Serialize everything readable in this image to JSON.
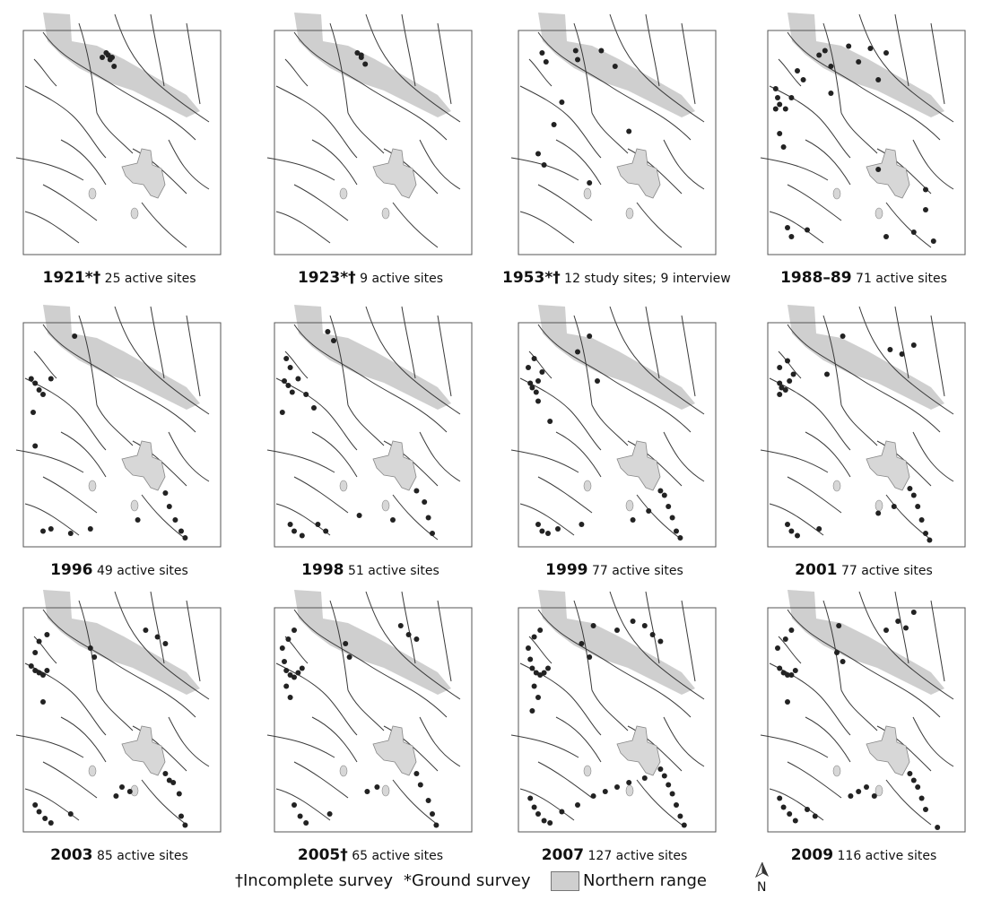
{
  "panels": [
    {
      "year": "1921*†",
      "count": "25 active sites",
      "dots": [
        [
          0.4,
          0.12
        ],
        [
          0.42,
          0.1
        ],
        [
          0.44,
          0.13
        ],
        [
          0.46,
          0.16
        ],
        [
          0.43,
          0.11
        ],
        [
          0.45,
          0.12
        ]
      ]
    },
    {
      "year": "1923*†",
      "count": "9 active sites",
      "dots": [
        [
          0.42,
          0.1
        ],
        [
          0.44,
          0.12
        ],
        [
          0.46,
          0.15
        ],
        [
          0.44,
          0.11
        ]
      ]
    },
    {
      "year": "1953*†",
      "count": "12 study sites; 9 interview",
      "dots": [
        [
          0.12,
          0.1
        ],
        [
          0.14,
          0.14
        ],
        [
          0.29,
          0.09
        ],
        [
          0.3,
          0.13
        ],
        [
          0.42,
          0.09
        ],
        [
          0.49,
          0.16
        ],
        [
          0.22,
          0.32
        ],
        [
          0.56,
          0.45
        ],
        [
          0.18,
          0.42
        ],
        [
          0.1,
          0.55
        ],
        [
          0.13,
          0.6
        ],
        [
          0.36,
          0.68
        ]
      ]
    },
    {
      "year": "1988–89",
      "count": "71 active sites",
      "dots": [
        [
          0.04,
          0.26
        ],
        [
          0.05,
          0.3
        ],
        [
          0.06,
          0.33
        ],
        [
          0.09,
          0.35
        ],
        [
          0.12,
          0.3
        ],
        [
          0.04,
          0.35
        ],
        [
          0.15,
          0.18
        ],
        [
          0.18,
          0.22
        ],
        [
          0.26,
          0.11
        ],
        [
          0.29,
          0.09
        ],
        [
          0.32,
          0.16
        ],
        [
          0.41,
          0.07
        ],
        [
          0.52,
          0.08
        ],
        [
          0.6,
          0.1
        ],
        [
          0.46,
          0.14
        ],
        [
          0.56,
          0.22
        ],
        [
          0.06,
          0.46
        ],
        [
          0.08,
          0.52
        ],
        [
          0.1,
          0.88
        ],
        [
          0.12,
          0.92
        ],
        [
          0.2,
          0.89
        ],
        [
          0.6,
          0.92
        ],
        [
          0.74,
          0.9
        ],
        [
          0.84,
          0.94
        ],
        [
          0.8,
          0.8
        ],
        [
          0.8,
          0.71
        ],
        [
          0.56,
          0.62
        ],
        [
          0.32,
          0.28
        ]
      ]
    },
    {
      "year": "1996",
      "count": "49 active sites",
      "dots": [
        [
          0.04,
          0.25
        ],
        [
          0.06,
          0.27
        ],
        [
          0.08,
          0.3
        ],
        [
          0.1,
          0.32
        ],
        [
          0.14,
          0.25
        ],
        [
          0.05,
          0.4
        ],
        [
          0.06,
          0.55
        ],
        [
          0.1,
          0.93
        ],
        [
          0.14,
          0.92
        ],
        [
          0.24,
          0.94
        ],
        [
          0.34,
          0.92
        ],
        [
          0.58,
          0.88
        ],
        [
          0.72,
          0.76
        ],
        [
          0.74,
          0.82
        ],
        [
          0.77,
          0.88
        ],
        [
          0.8,
          0.93
        ],
        [
          0.82,
          0.96
        ],
        [
          0.26,
          0.06
        ]
      ]
    },
    {
      "year": "1998",
      "count": "51 active sites",
      "dots": [
        [
          0.05,
          0.26
        ],
        [
          0.07,
          0.28
        ],
        [
          0.09,
          0.31
        ],
        [
          0.12,
          0.25
        ],
        [
          0.08,
          0.2
        ],
        [
          0.06,
          0.16
        ],
        [
          0.04,
          0.4
        ],
        [
          0.08,
          0.9
        ],
        [
          0.1,
          0.93
        ],
        [
          0.14,
          0.95
        ],
        [
          0.22,
          0.9
        ],
        [
          0.26,
          0.93
        ],
        [
          0.43,
          0.86
        ],
        [
          0.6,
          0.88
        ],
        [
          0.72,
          0.75
        ],
        [
          0.76,
          0.8
        ],
        [
          0.78,
          0.87
        ],
        [
          0.8,
          0.94
        ],
        [
          0.27,
          0.04
        ],
        [
          0.3,
          0.08
        ],
        [
          0.16,
          0.32
        ],
        [
          0.2,
          0.38
        ]
      ]
    },
    {
      "year": "1999",
      "count": "77 active sites",
      "dots": [
        [
          0.06,
          0.27
        ],
        [
          0.07,
          0.29
        ],
        [
          0.09,
          0.31
        ],
        [
          0.1,
          0.26
        ],
        [
          0.12,
          0.22
        ],
        [
          0.05,
          0.2
        ],
        [
          0.08,
          0.16
        ],
        [
          0.1,
          0.35
        ],
        [
          0.1,
          0.9
        ],
        [
          0.12,
          0.93
        ],
        [
          0.15,
          0.94
        ],
        [
          0.2,
          0.92
        ],
        [
          0.32,
          0.9
        ],
        [
          0.58,
          0.88
        ],
        [
          0.66,
          0.84
        ],
        [
          0.72,
          0.75
        ],
        [
          0.74,
          0.77
        ],
        [
          0.76,
          0.82
        ],
        [
          0.78,
          0.87
        ],
        [
          0.8,
          0.93
        ],
        [
          0.82,
          0.96
        ],
        [
          0.3,
          0.13
        ],
        [
          0.4,
          0.26
        ],
        [
          0.36,
          0.06
        ],
        [
          0.16,
          0.44
        ]
      ]
    },
    {
      "year": "2001",
      "count": "77 active sites",
      "dots": [
        [
          0.06,
          0.27
        ],
        [
          0.07,
          0.29
        ],
        [
          0.09,
          0.3
        ],
        [
          0.11,
          0.26
        ],
        [
          0.13,
          0.23
        ],
        [
          0.06,
          0.2
        ],
        [
          0.1,
          0.17
        ],
        [
          0.06,
          0.32
        ],
        [
          0.1,
          0.9
        ],
        [
          0.12,
          0.93
        ],
        [
          0.15,
          0.95
        ],
        [
          0.26,
          0.92
        ],
        [
          0.56,
          0.85
        ],
        [
          0.64,
          0.82
        ],
        [
          0.72,
          0.74
        ],
        [
          0.74,
          0.77
        ],
        [
          0.76,
          0.82
        ],
        [
          0.78,
          0.88
        ],
        [
          0.8,
          0.94
        ],
        [
          0.82,
          0.97
        ],
        [
          0.38,
          0.06
        ],
        [
          0.74,
          0.1
        ],
        [
          0.68,
          0.14
        ],
        [
          0.62,
          0.12
        ],
        [
          0.3,
          0.23
        ]
      ]
    },
    {
      "year": "2003",
      "count": "85 active sites",
      "dots": [
        [
          0.04,
          0.26
        ],
        [
          0.06,
          0.28
        ],
        [
          0.08,
          0.29
        ],
        [
          0.1,
          0.3
        ],
        [
          0.12,
          0.28
        ],
        [
          0.06,
          0.2
        ],
        [
          0.08,
          0.15
        ],
        [
          0.12,
          0.12
        ],
        [
          0.1,
          0.42
        ],
        [
          0.06,
          0.88
        ],
        [
          0.08,
          0.91
        ],
        [
          0.11,
          0.94
        ],
        [
          0.14,
          0.96
        ],
        [
          0.24,
          0.92
        ],
        [
          0.47,
          0.84
        ],
        [
          0.5,
          0.8
        ],
        [
          0.54,
          0.82
        ],
        [
          0.72,
          0.74
        ],
        [
          0.74,
          0.77
        ],
        [
          0.76,
          0.78
        ],
        [
          0.79,
          0.83
        ],
        [
          0.8,
          0.93
        ],
        [
          0.82,
          0.97
        ],
        [
          0.34,
          0.18
        ],
        [
          0.36,
          0.22
        ],
        [
          0.62,
          0.1
        ],
        [
          0.68,
          0.13
        ],
        [
          0.72,
          0.16
        ]
      ]
    },
    {
      "year": "2005†",
      "count": "65 active sites",
      "dots": [
        [
          0.04,
          0.18
        ],
        [
          0.05,
          0.24
        ],
        [
          0.06,
          0.28
        ],
        [
          0.08,
          0.3
        ],
        [
          0.1,
          0.31
        ],
        [
          0.12,
          0.29
        ],
        [
          0.14,
          0.27
        ],
        [
          0.07,
          0.14
        ],
        [
          0.1,
          0.1
        ],
        [
          0.06,
          0.35
        ],
        [
          0.08,
          0.4
        ],
        [
          0.1,
          0.88
        ],
        [
          0.13,
          0.93
        ],
        [
          0.16,
          0.96
        ],
        [
          0.28,
          0.92
        ],
        [
          0.47,
          0.82
        ],
        [
          0.52,
          0.8
        ],
        [
          0.72,
          0.74
        ],
        [
          0.74,
          0.79
        ],
        [
          0.78,
          0.86
        ],
        [
          0.8,
          0.92
        ],
        [
          0.82,
          0.97
        ],
        [
          0.36,
          0.16
        ],
        [
          0.38,
          0.22
        ],
        [
          0.64,
          0.08
        ],
        [
          0.68,
          0.12
        ],
        [
          0.72,
          0.14
        ]
      ]
    },
    {
      "year": "2007",
      "count": "127 active sites",
      "dots": [
        [
          0.05,
          0.18
        ],
        [
          0.06,
          0.23
        ],
        [
          0.07,
          0.27
        ],
        [
          0.09,
          0.29
        ],
        [
          0.11,
          0.3
        ],
        [
          0.13,
          0.29
        ],
        [
          0.15,
          0.27
        ],
        [
          0.08,
          0.13
        ],
        [
          0.11,
          0.1
        ],
        [
          0.08,
          0.35
        ],
        [
          0.1,
          0.4
        ],
        [
          0.07,
          0.46
        ],
        [
          0.06,
          0.85
        ],
        [
          0.08,
          0.89
        ],
        [
          0.1,
          0.92
        ],
        [
          0.13,
          0.95
        ],
        [
          0.16,
          0.96
        ],
        [
          0.22,
          0.91
        ],
        [
          0.3,
          0.88
        ],
        [
          0.38,
          0.84
        ],
        [
          0.44,
          0.82
        ],
        [
          0.5,
          0.8
        ],
        [
          0.56,
          0.78
        ],
        [
          0.64,
          0.76
        ],
        [
          0.72,
          0.72
        ],
        [
          0.74,
          0.75
        ],
        [
          0.76,
          0.79
        ],
        [
          0.78,
          0.83
        ],
        [
          0.8,
          0.88
        ],
        [
          0.82,
          0.93
        ],
        [
          0.84,
          0.97
        ],
        [
          0.32,
          0.16
        ],
        [
          0.36,
          0.22
        ],
        [
          0.38,
          0.08
        ],
        [
          0.58,
          0.06
        ],
        [
          0.64,
          0.08
        ],
        [
          0.68,
          0.12
        ],
        [
          0.72,
          0.15
        ],
        [
          0.5,
          0.1
        ]
      ]
    },
    {
      "year": "2009",
      "count": "116 active sites",
      "dots": [
        [
          0.05,
          0.18
        ],
        [
          0.06,
          0.27
        ],
        [
          0.08,
          0.29
        ],
        [
          0.1,
          0.3
        ],
        [
          0.12,
          0.3
        ],
        [
          0.14,
          0.28
        ],
        [
          0.09,
          0.14
        ],
        [
          0.12,
          0.1
        ],
        [
          0.1,
          0.42
        ],
        [
          0.06,
          0.85
        ],
        [
          0.08,
          0.89
        ],
        [
          0.11,
          0.92
        ],
        [
          0.14,
          0.95
        ],
        [
          0.2,
          0.9
        ],
        [
          0.24,
          0.93
        ],
        [
          0.42,
          0.84
        ],
        [
          0.46,
          0.82
        ],
        [
          0.5,
          0.8
        ],
        [
          0.54,
          0.84
        ],
        [
          0.72,
          0.74
        ],
        [
          0.74,
          0.77
        ],
        [
          0.76,
          0.8
        ],
        [
          0.78,
          0.85
        ],
        [
          0.8,
          0.9
        ],
        [
          0.86,
          0.98
        ],
        [
          0.35,
          0.2
        ],
        [
          0.38,
          0.24
        ],
        [
          0.36,
          0.08
        ],
        [
          0.6,
          0.1
        ],
        [
          0.66,
          0.06
        ],
        [
          0.7,
          0.09
        ],
        [
          0.74,
          0.02
        ]
      ]
    }
  ],
  "legend": {
    "incomplete": "†Incomplete survey",
    "ground": "*Ground survey",
    "northern_range": "Northern range"
  },
  "north_label": "N",
  "colors": {
    "northern_range": "#cfcfcf",
    "lake": "#d7d7d7",
    "river": "#3a3a3a",
    "site": "#222222"
  }
}
